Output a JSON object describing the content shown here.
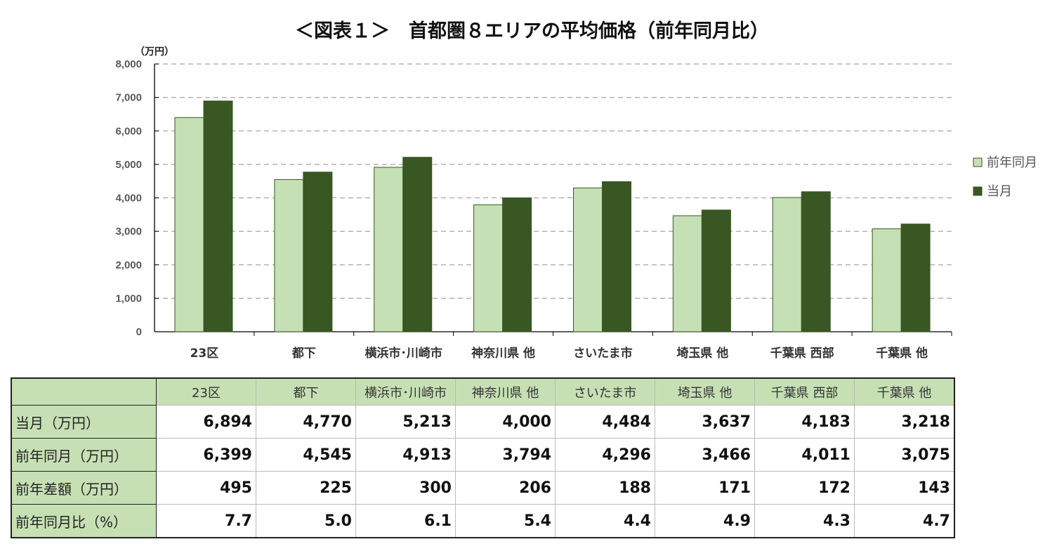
{
  "title": "＜図表１＞　首都圏８エリアの平均価格（前年同月比）",
  "chart_data": {
    "type": "bar",
    "title": "＜図表１＞　首都圏８エリアの平均価格（前年同月比）",
    "ylabel": "（万円）",
    "ylim": [
      0,
      8000
    ],
    "yticks": [
      "0",
      "1,000",
      "2,000",
      "3,000",
      "4,000",
      "5,000",
      "6,000",
      "7,000",
      "8,000"
    ],
    "grid": true,
    "legend_position": "right",
    "categories": [
      "23区",
      "都下",
      "横浜市･川崎市",
      "神奈川県 他",
      "さいたま市",
      "埼玉県 他",
      "千葉県 西部",
      "千葉県 他"
    ],
    "series": [
      {
        "name": "前年同月",
        "color": "#c5e0b4",
        "values": [
          6399,
          4545,
          4913,
          3794,
          4296,
          3466,
          4011,
          3075
        ]
      },
      {
        "name": "当月",
        "color": "#385723",
        "values": [
          6894,
          4770,
          5213,
          4000,
          4484,
          3637,
          4183,
          3218
        ]
      }
    ]
  },
  "table": {
    "headers": [
      "23区",
      "都下",
      "横浜市･川崎市",
      "神奈川県 他",
      "さいたま市",
      "埼玉県 他",
      "千葉県 西部",
      "千葉県 他"
    ],
    "rows": [
      {
        "label": "当月（万円）",
        "values": [
          "6,894",
          "4,770",
          "5,213",
          "4,000",
          "4,484",
          "3,637",
          "4,183",
          "3,218"
        ]
      },
      {
        "label": "前年同月（万円）",
        "values": [
          "6,399",
          "4,545",
          "4,913",
          "3,794",
          "4,296",
          "3,466",
          "4,011",
          "3,075"
        ]
      },
      {
        "label": "前年差額（万円）",
        "values": [
          "495",
          "225",
          "300",
          "206",
          "188",
          "171",
          "172",
          "143"
        ]
      },
      {
        "label": "前年同月比（%）",
        "values": [
          "7.7",
          "5.0",
          "6.1",
          "5.4",
          "4.4",
          "4.9",
          "4.3",
          "4.7"
        ]
      }
    ]
  }
}
